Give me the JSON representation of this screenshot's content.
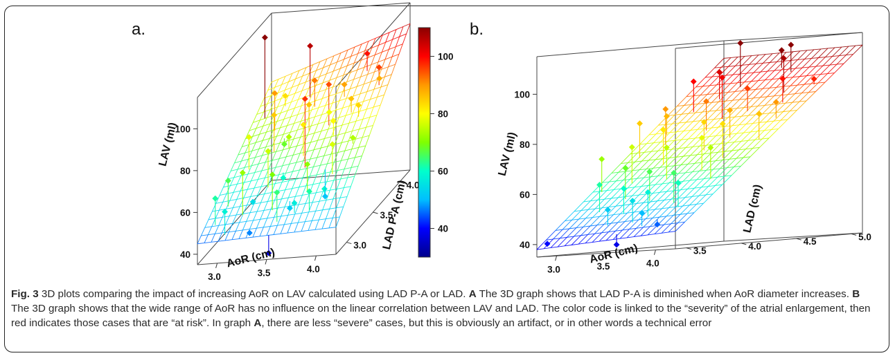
{
  "figure": {
    "caption": {
      "label": "Fig. 3",
      "intro": " 3D plots comparing the impact of increasing AoR on LAV calculated using LAD P-A or LAD. ",
      "a_ref": "A",
      "a_text": " The 3D graph shows that LAD P-A is diminished when AoR diameter increases. ",
      "b_ref": "B",
      "b_text": " The 3D graph shows that the wide range of AoR has no influence on the linear correlation between LAV and LAD. The color code is linked to the “severity” of the atrial enlargement, then red indicates those cases that are “at risk”. In graph ",
      "a_ref2": "A",
      "end_text": ", there are less “severe” cases, but this is obviously an artifact, or in other words a technical error"
    }
  },
  "chart_data": [
    {
      "type": "scatter",
      "panel_label": "a.",
      "surface": "regression plane",
      "xlabel": "AoR (cm)",
      "ylabel": "LAD P-A (cm)",
      "zlabel": "LAV (ml)",
      "x_ticks": [
        "3.0",
        "3.5",
        "4.0"
      ],
      "y_ticks": [
        "3.0",
        "3.5",
        "4.0"
      ],
      "z_ticks": [
        "40",
        "60",
        "80",
        "100"
      ],
      "xlim": [
        2.8,
        4.2
      ],
      "ylim": [
        2.8,
        4.2
      ],
      "zlim": [
        35,
        115
      ],
      "plane_corner_lav": {
        "x_min_y_min": 45,
        "x_max_y_min": 48,
        "x_min_y_max": 82,
        "x_max_y_max": 105
      },
      "points": [
        {
          "aor": 2.92,
          "lad": 3.85,
          "lav": 113
        },
        {
          "aor": 3.35,
          "lad": 3.9,
          "lav": 106
        },
        {
          "aor": 3.7,
          "lad": 3.6,
          "lav": 95
        },
        {
          "aor": 3.62,
          "lad": 3.3,
          "lav": 97
        },
        {
          "aor": 3.1,
          "lad": 3.7,
          "lav": 90
        },
        {
          "aor": 3.45,
          "lad": 3.8,
          "lav": 92
        },
        {
          "aor": 3.9,
          "lad": 3.95,
          "lav": 99
        },
        {
          "aor": 4.1,
          "lad": 3.8,
          "lav": 96
        },
        {
          "aor": 3.2,
          "lad": 3.5,
          "lav": 85
        },
        {
          "aor": 3.55,
          "lad": 3.4,
          "lav": 82
        },
        {
          "aor": 3.8,
          "lad": 3.5,
          "lav": 80
        },
        {
          "aor": 4.0,
          "lad": 3.6,
          "lav": 84
        },
        {
          "aor": 3.0,
          "lad": 3.4,
          "lav": 78
        },
        {
          "aor": 3.3,
          "lad": 3.2,
          "lav": 76
        },
        {
          "aor": 3.65,
          "lad": 3.7,
          "lav": 79
        },
        {
          "aor": 3.95,
          "lad": 3.2,
          "lav": 77
        },
        {
          "aor": 3.15,
          "lad": 3.0,
          "lav": 72
        },
        {
          "aor": 3.45,
          "lad": 3.0,
          "lav": 70
        },
        {
          "aor": 3.75,
          "lad": 3.1,
          "lav": 71
        },
        {
          "aor": 4.05,
          "lad": 3.4,
          "lav": 74
        },
        {
          "aor": 2.95,
          "lad": 3.1,
          "lav": 66
        },
        {
          "aor": 3.25,
          "lad": 3.6,
          "lav": 68
        },
        {
          "aor": 3.55,
          "lad": 2.9,
          "lav": 64
        },
        {
          "aor": 3.85,
          "lad": 2.95,
          "lav": 62
        },
        {
          "aor": 3.05,
          "lad": 2.85,
          "lav": 58
        },
        {
          "aor": 3.4,
          "lad": 3.3,
          "lav": 60
        },
        {
          "aor": 3.7,
          "lad": 2.95,
          "lav": 57
        },
        {
          "aor": 3.95,
          "lad": 3.05,
          "lav": 60
        },
        {
          "aor": 3.2,
          "lad": 3.1,
          "lav": 55
        },
        {
          "aor": 3.6,
          "lad": 3.05,
          "lav": 52
        },
        {
          "aor": 3.85,
          "lad": 3.25,
          "lav": 51
        },
        {
          "aor": 2.9,
          "lad": 2.95,
          "lav": 62
        },
        {
          "aor": 3.3,
          "lad": 2.85,
          "lav": 47
        },
        {
          "aor": 3.52,
          "lad": 2.8,
          "lav": 38
        },
        {
          "aor": 4.05,
          "lad": 3.9,
          "lav": 88
        },
        {
          "aor": 3.5,
          "lad": 3.6,
          "lav": 86
        },
        {
          "aor": 3.1,
          "lad": 3.9,
          "lav": 83
        },
        {
          "aor": 3.75,
          "lad": 3.8,
          "lav": 89
        },
        {
          "aor": 3.35,
          "lad": 3.5,
          "lav": 74
        },
        {
          "aor": 3.9,
          "lad": 3.65,
          "lav": 86
        }
      ]
    },
    {
      "type": "scatter",
      "panel_label": "b.",
      "surface": "regression plane",
      "xlabel": "AoR (cm)",
      "ylabel": "LAD (cm)",
      "zlabel": "LAV (ml)",
      "x_ticks": [
        "3.0",
        "3.5",
        "4.0"
      ],
      "y_ticks": [
        "3.5",
        "4.0",
        "4.5",
        "5.0"
      ],
      "z_ticks": [
        "40",
        "60",
        "80",
        "100"
      ],
      "xlim": [
        2.8,
        4.2
      ],
      "ylim": [
        3.4,
        5.1
      ],
      "zlim": [
        35,
        115
      ],
      "plane_corner_lav": {
        "x_min_y_min": 38,
        "x_max_y_min": 42,
        "x_min_y_max": 108,
        "x_max_y_max": 110
      },
      "points": [
        {
          "aor": 3.3,
          "lad": 4.8,
          "lav": 114
        },
        {
          "aor": 3.7,
          "lad": 4.9,
          "lav": 112
        },
        {
          "aor": 3.85,
          "lad": 4.7,
          "lav": 107
        },
        {
          "aor": 3.55,
          "lad": 4.95,
          "lav": 110
        },
        {
          "aor": 3.05,
          "lad": 4.6,
          "lav": 100
        },
        {
          "aor": 3.45,
          "lad": 4.5,
          "lav": 101
        },
        {
          "aor": 3.95,
          "lad": 4.6,
          "lav": 99
        },
        {
          "aor": 3.2,
          "lad": 4.7,
          "lav": 103
        },
        {
          "aor": 3.1,
          "lad": 4.3,
          "lav": 90
        },
        {
          "aor": 3.4,
          "lad": 4.4,
          "lav": 92
        },
        {
          "aor": 3.75,
          "lad": 4.3,
          "lav": 88
        },
        {
          "aor": 4.05,
          "lad": 4.45,
          "lav": 90
        },
        {
          "aor": 2.95,
          "lad": 4.2,
          "lav": 85
        },
        {
          "aor": 3.3,
          "lad": 4.1,
          "lav": 82
        },
        {
          "aor": 3.6,
          "lad": 4.2,
          "lav": 84
        },
        {
          "aor": 3.9,
          "lad": 4.1,
          "lav": 83
        },
        {
          "aor": 4.1,
          "lad": 4.25,
          "lav": 86
        },
        {
          "aor": 3.15,
          "lad": 3.95,
          "lav": 76
        },
        {
          "aor": 3.5,
          "lad": 3.95,
          "lav": 75
        },
        {
          "aor": 3.8,
          "lad": 4.0,
          "lav": 78
        },
        {
          "aor": 4.0,
          "lad": 3.9,
          "lav": 74
        },
        {
          "aor": 2.9,
          "lad": 3.9,
          "lav": 72
        },
        {
          "aor": 3.25,
          "lad": 3.8,
          "lav": 68
        },
        {
          "aor": 3.55,
          "lad": 3.75,
          "lav": 66
        },
        {
          "aor": 3.85,
          "lad": 3.7,
          "lav": 65
        },
        {
          "aor": 3.1,
          "lad": 3.7,
          "lav": 62
        },
        {
          "aor": 3.4,
          "lad": 3.65,
          "lav": 60
        },
        {
          "aor": 3.7,
          "lad": 3.6,
          "lav": 58
        },
        {
          "aor": 3.95,
          "lad": 3.65,
          "lav": 61
        },
        {
          "aor": 3.6,
          "lad": 3.55,
          "lav": 55
        },
        {
          "aor": 3.35,
          "lad": 3.55,
          "lav": 52
        },
        {
          "aor": 3.75,
          "lad": 3.5,
          "lav": 50
        },
        {
          "aor": 2.85,
          "lad": 3.45,
          "lav": 40
        },
        {
          "aor": 3.55,
          "lad": 3.45,
          "lav": 38
        },
        {
          "aor": 3.85,
          "lad": 3.55,
          "lav": 45
        },
        {
          "aor": 3.0,
          "lad": 4.4,
          "lav": 87
        },
        {
          "aor": 3.65,
          "lad": 4.55,
          "lav": 96
        },
        {
          "aor": 4.1,
          "lad": 4.75,
          "lav": 98
        }
      ]
    },
    {
      "type": "colorbar",
      "ticks": [
        "40",
        "60",
        "80",
        "100"
      ],
      "range": [
        30,
        110
      ],
      "colors": [
        "#00008b",
        "#0000ff",
        "#00bfff",
        "#00ffcc",
        "#7fff00",
        "#ffff00",
        "#ff9900",
        "#ff0000",
        "#8b0000"
      ]
    }
  ]
}
